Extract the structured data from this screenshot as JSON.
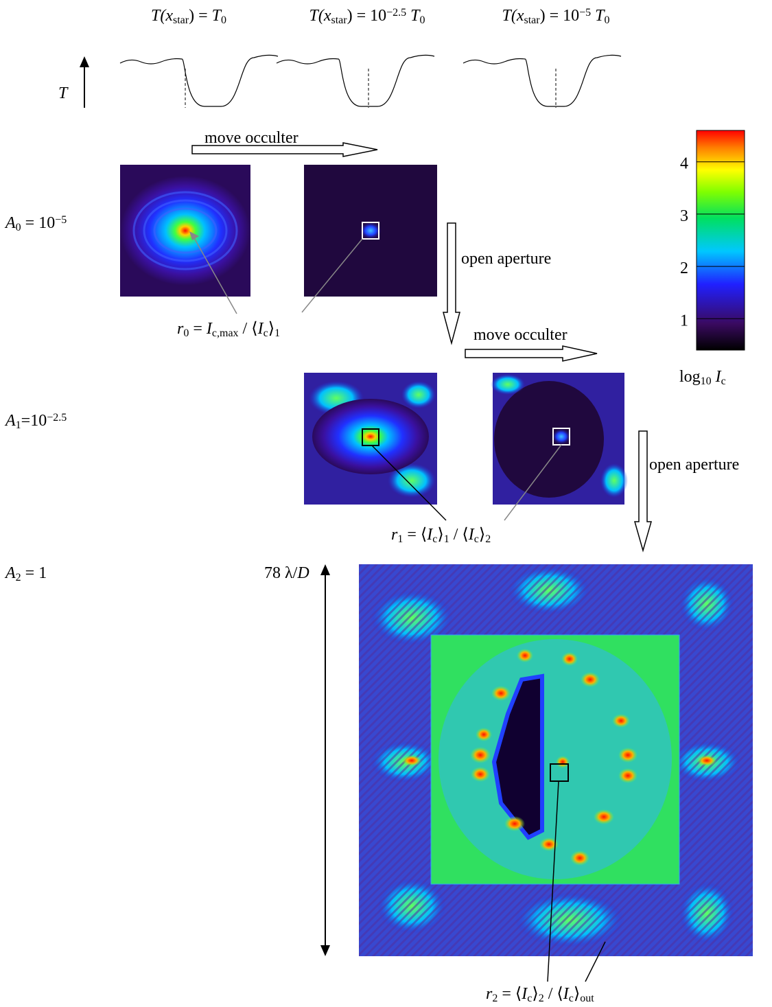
{
  "transmission_labels": [
    [
      "T(x",
      "star",
      ") = ",
      "T",
      "0"
    ],
    [
      "T(x",
      "star",
      ") = 10",
      "−2.5",
      " T",
      "0"
    ],
    [
      "T(x",
      "star",
      ") = 10",
      "−5",
      " T",
      "0"
    ]
  ],
  "t_axis_label": "T",
  "arrows": {
    "move_occulter_1": "move occulter",
    "open_aperture_1": "open aperture",
    "move_occulter_2": "move occulter",
    "open_aperture_2": "open aperture"
  },
  "rows": [
    {
      "label": [
        "A",
        "0",
        " = 10",
        "−5"
      ]
    },
    {
      "label": [
        "A",
        "1",
        "=10",
        "−2.5"
      ]
    },
    {
      "label": [
        "A",
        "2",
        " = 1"
      ]
    }
  ],
  "ratios": [
    [
      "r",
      "0",
      " = ",
      "I",
      "c,max",
      " / ⟨",
      "I",
      "c",
      "⟩",
      "1"
    ],
    [
      "r",
      "1",
      " = ⟨",
      "I",
      "c",
      "⟩",
      "1",
      " / ⟨",
      "I",
      "c",
      "⟩",
      "2"
    ],
    [
      "r",
      "2",
      " = ⟨",
      "I",
      "c",
      "⟩",
      "2",
      " / ⟨",
      "I",
      "c",
      "⟩",
      "out"
    ]
  ],
  "scale_label": [
    "78 λ/",
    "D"
  ],
  "colorbar": {
    "range": [
      0.4,
      4.6
    ],
    "ticks": [
      1,
      2,
      3,
      4
    ],
    "label": [
      "log",
      "10",
      " I",
      "c"
    ]
  }
}
